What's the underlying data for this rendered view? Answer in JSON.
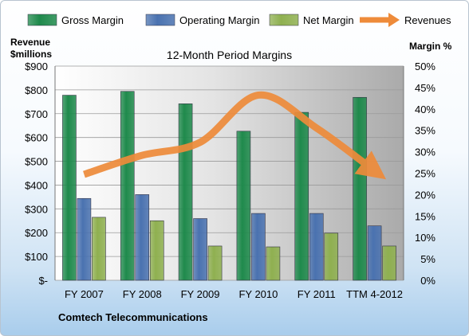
{
  "chart_data": {
    "type": "bar",
    "title": "12-Month Period Margins",
    "categories": [
      "FY 2007",
      "FY 2008",
      "FY 2009",
      "FY 2010",
      "FY 2011",
      "TTM 4-2012"
    ],
    "series": [
      {
        "name": "Gross Margin",
        "axis": "right",
        "color": "#1f8a4c",
        "values": [
          43.2,
          44.1,
          41.2,
          34.8,
          39.2,
          42.7
        ]
      },
      {
        "name": "Operating Margin",
        "axis": "right",
        "color": "#4a72b0",
        "values": [
          19.1,
          20.0,
          14.4,
          15.6,
          15.6,
          12.7
        ]
      },
      {
        "name": "Net Margin",
        "axis": "right",
        "color": "#8fb050",
        "values": [
          14.7,
          13.9,
          8.0,
          7.8,
          11.0,
          8.0
        ]
      },
      {
        "name": "Revenues",
        "axis": "left",
        "type": "line",
        "color": "#ee8b3a",
        "values": [
          445,
          525,
          580,
          778,
          640,
          460
        ]
      }
    ],
    "left_axis": {
      "label_line1": "Revenue",
      "label_line2": "$millions",
      "ylim": [
        0,
        900
      ],
      "ticks": [
        0,
        100,
        200,
        300,
        400,
        500,
        600,
        700,
        800,
        900
      ],
      "tick_labels": [
        "$-",
        "$100",
        "$200",
        "$300",
        "$400",
        "$500",
        "$600",
        "$700",
        "$800",
        "$900"
      ]
    },
    "right_axis": {
      "label": "Margin %",
      "ylim": [
        0,
        50
      ],
      "ticks": [
        0,
        5,
        10,
        15,
        20,
        25,
        30,
        35,
        40,
        45,
        50
      ],
      "tick_labels": [
        "0%",
        "5%",
        "10%",
        "15%",
        "20%",
        "25%",
        "30%",
        "35%",
        "40%",
        "45%",
        "50%"
      ]
    },
    "grid": true,
    "legend_position": "top"
  },
  "footer": "Comtech Telecommunications"
}
